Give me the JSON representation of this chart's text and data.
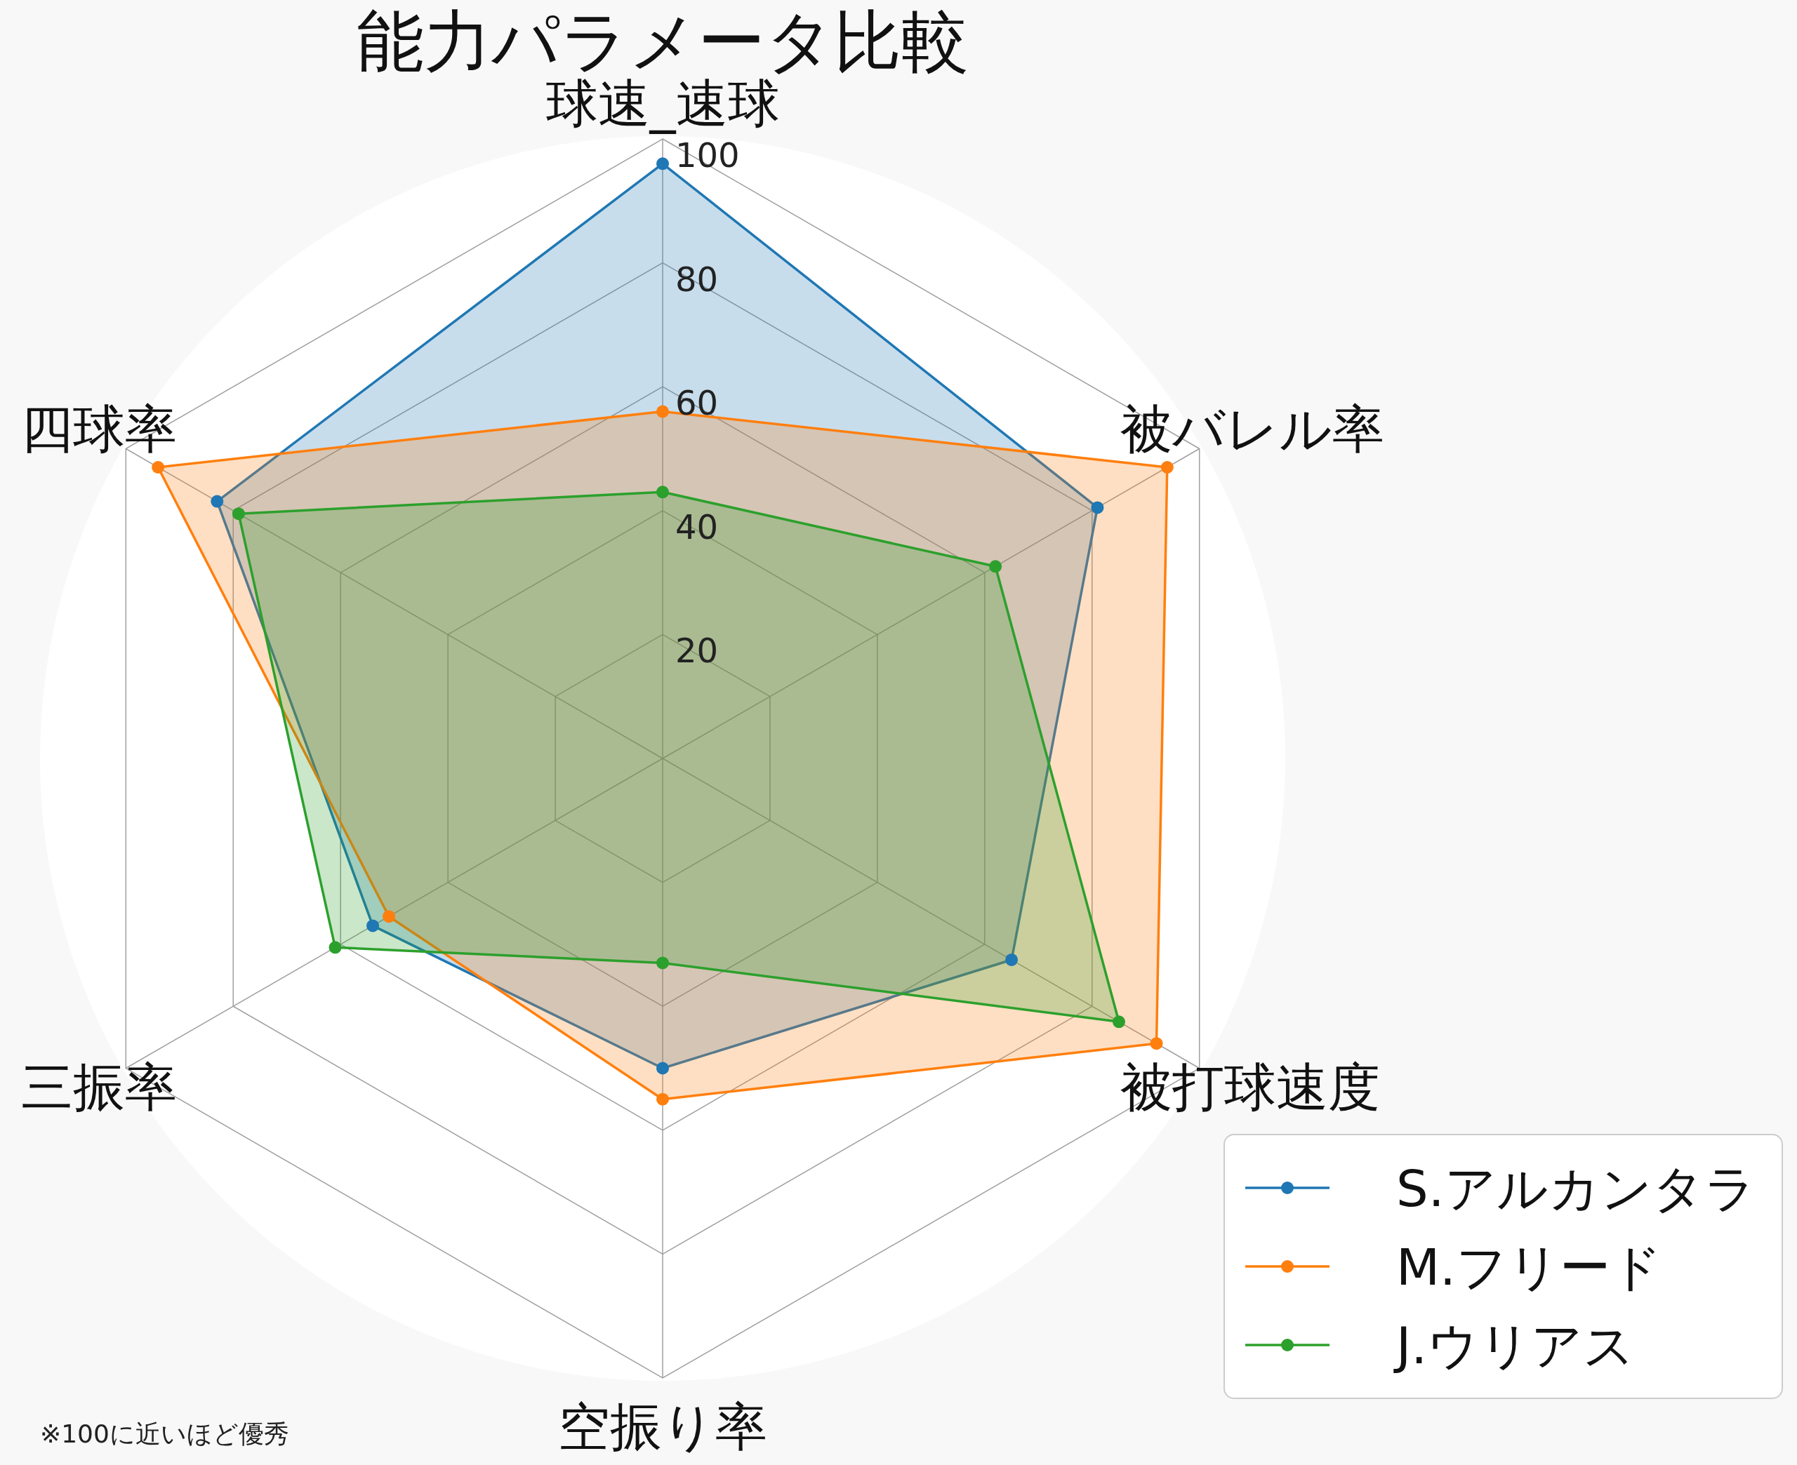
{
  "chart_data": {
    "type": "radar",
    "title": "能力パラメータ比較",
    "categories": [
      "球速_速球",
      "被バレル率",
      "被打球速度",
      "空振り率",
      "三振率",
      "四球率"
    ],
    "series": [
      {
        "name": "S.アルカンタラ",
        "color": "#1f77b4",
        "values": [
          96,
          81,
          65,
          50,
          54,
          83
        ]
      },
      {
        "name": "M.フリード",
        "color": "#ff7f0e",
        "values": [
          56,
          94,
          92,
          55,
          51,
          94
        ]
      },
      {
        "name": "J.ウリアス",
        "color": "#2ca02c",
        "values": [
          43,
          62,
          85,
          33,
          61,
          79
        ]
      }
    ],
    "ylim": [
      0,
      100
    ],
    "yticks": [
      20,
      40,
      60,
      80,
      100
    ],
    "grid": true,
    "marker": "circle",
    "legend": "bottom right",
    "annotations": [
      "※100に近いほど優秀"
    ]
  }
}
